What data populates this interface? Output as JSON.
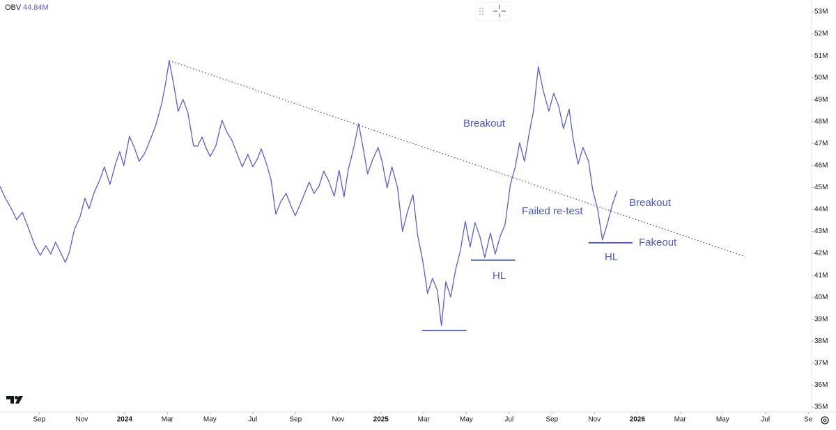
{
  "chart_data": {
    "type": "line",
    "indicator": "OBV",
    "last_value": 44.84,
    "last_value_label": "44.84M",
    "xlim": [
      2023.514,
      2026.68
    ],
    "ylim": [
      34.84,
      53.54
    ],
    "xticks": [
      {
        "value": 2023.667,
        "label": "Sep"
      },
      {
        "value": 2023.833,
        "label": "Nov"
      },
      2024,
      {
        "value": 2024.167,
        "label": "Mar"
      },
      {
        "value": 2024.333,
        "label": "May"
      },
      {
        "value": 2024.5,
        "label": "Jul"
      },
      {
        "value": 2024.667,
        "label": "Sep"
      },
      {
        "value": 2024.833,
        "label": "Nov"
      },
      2025,
      {
        "value": 2025.167,
        "label": "Mar"
      },
      {
        "value": 2025.333,
        "label": "May"
      },
      {
        "value": 2025.5,
        "label": "Jul"
      },
      {
        "value": 2025.667,
        "label": "Sep"
      },
      {
        "value": 2025.833,
        "label": "Nov"
      },
      2026,
      {
        "value": 2026.167,
        "label": "Mar"
      },
      {
        "value": 2026.333,
        "label": "May"
      },
      {
        "value": 2026.5,
        "label": "Jul"
      },
      {
        "value": 2026.667,
        "label": "Se"
      }
    ],
    "yticks": [
      {
        "value": 35,
        "label": "35M"
      },
      {
        "value": 36,
        "label": "36M"
      },
      {
        "value": 37,
        "label": "37M"
      },
      {
        "value": 38,
        "label": "38M"
      },
      {
        "value": 39,
        "label": "39M"
      },
      {
        "value": 40,
        "label": "40M"
      },
      {
        "value": 41,
        "label": "41M"
      },
      {
        "value": 42,
        "label": "42M"
      },
      {
        "value": 43,
        "label": "43M"
      },
      {
        "value": 44,
        "label": "44M"
      },
      {
        "value": 45,
        "label": "45M"
      },
      {
        "value": 46,
        "label": "46M"
      },
      {
        "value": 47,
        "label": "47M"
      },
      {
        "value": 48,
        "label": "48M"
      },
      {
        "value": 49,
        "label": "49M"
      },
      {
        "value": 50,
        "label": "50M"
      },
      {
        "value": 51,
        "label": "51M"
      },
      {
        "value": 52,
        "label": "52M"
      },
      {
        "value": 53,
        "label": "53M"
      }
    ],
    "series": [
      {
        "name": "OBV",
        "color": "#5b5bd6",
        "x": [
          2023.514,
          2023.535,
          2023.554,
          2023.579,
          2023.601,
          2023.622,
          2023.649,
          2023.671,
          2023.693,
          2023.712,
          2023.731,
          2023.75,
          2023.769,
          2023.785,
          2023.804,
          2023.826,
          2023.845,
          2023.861,
          2023.883,
          2023.902,
          2023.921,
          2023.943,
          2023.965,
          2023.981,
          2023.997,
          2024.019,
          2024.038,
          2024.057,
          2024.079,
          2024.101,
          2024.122,
          2024.144,
          2024.16,
          2024.174,
          2024.19,
          2024.209,
          2024.228,
          2024.247,
          2024.269,
          2024.285,
          2024.302,
          2024.318,
          2024.334,
          2024.356,
          2024.38,
          2024.399,
          2024.418,
          2024.44,
          2024.459,
          2024.481,
          2024.5,
          2024.519,
          2024.533,
          2024.554,
          2024.571,
          2024.59,
          2024.609,
          2024.63,
          2024.649,
          2024.666,
          2024.682,
          2024.698,
          2024.72,
          2024.739,
          2024.758,
          2024.777,
          2024.796,
          2024.818,
          2024.837,
          2024.856,
          2024.872,
          2024.894,
          2024.913,
          2024.929,
          2024.948,
          2024.967,
          2024.989,
          2025.005,
          2025.024,
          2025.043,
          2025.065,
          2025.084,
          2025.103,
          2025.125,
          2025.144,
          2025.163,
          2025.182,
          2025.201,
          2025.22,
          2025.236,
          2025.253,
          2025.272,
          2025.291,
          2025.31,
          2025.329,
          2025.348,
          2025.367,
          2025.386,
          2025.405,
          2025.427,
          2025.446,
          2025.465,
          2025.484,
          2025.505,
          2025.524,
          2025.541,
          2025.56,
          2025.579,
          2025.595,
          2025.614,
          2025.633,
          2025.655,
          2025.674,
          2025.693,
          2025.712,
          2025.734,
          2025.75,
          2025.769,
          2025.788,
          2025.81,
          2025.826,
          2025.845,
          2025.864,
          2025.883,
          2025.902,
          2025.921
        ],
        "values": [
          45.05,
          44.51,
          44.13,
          43.53,
          43.87,
          43.24,
          42.39,
          41.91,
          42.35,
          41.97,
          42.51,
          42.04,
          41.59,
          42.07,
          43.08,
          43.65,
          44.51,
          44.03,
          44.83,
          45.3,
          45.94,
          45.14,
          46.09,
          46.63,
          46.0,
          47.33,
          46.82,
          46.19,
          46.57,
          47.2,
          47.84,
          48.79,
          49.74,
          50.78,
          49.8,
          48.47,
          49.01,
          48.41,
          46.89,
          46.89,
          47.3,
          46.79,
          46.41,
          46.89,
          48.06,
          47.52,
          47.17,
          46.51,
          45.94,
          46.51,
          45.94,
          46.32,
          46.76,
          46.06,
          45.36,
          43.78,
          44.35,
          44.73,
          44.16,
          43.72,
          44.16,
          44.6,
          45.24,
          44.73,
          45.05,
          45.74,
          45.3,
          44.6,
          45.78,
          44.57,
          45.78,
          46.82,
          47.9,
          46.89,
          45.62,
          46.25,
          46.82,
          46.16,
          44.98,
          45.94,
          44.98,
          42.99,
          43.87,
          44.67,
          42.77,
          41.66,
          40.17,
          40.86,
          40.32,
          38.71,
          40.71,
          40.01,
          41.24,
          42.13,
          43.46,
          42.29,
          43.4,
          42.77,
          41.81,
          42.92,
          41.97,
          42.77,
          43.3,
          45.14,
          45.94,
          47.04,
          46.19,
          47.52,
          48.47,
          50.5,
          49.42,
          48.47,
          49.29,
          48.72,
          47.68,
          48.57,
          47.2,
          46.06,
          46.82,
          46.19,
          44.89,
          44.03,
          42.61,
          43.34,
          44.19,
          44.84
        ]
      }
    ],
    "trendline": {
      "x": [
        2024.174,
        2026.421
      ],
      "y": [
        50.78,
        41.85
      ]
    },
    "levels": [
      {
        "x": [
          2025.16,
          2025.334
        ],
        "y": 38.49
      },
      {
        "x": [
          2025.351,
          2025.524
        ],
        "y": 41.69
      },
      {
        "x": [
          2025.81,
          2025.981
        ],
        "y": 42.48
      }
    ],
    "annotations": [
      "Breakout",
      "Failed re-test",
      "HL",
      "Breakout",
      "Fakeout",
      "HL"
    ]
  }
}
